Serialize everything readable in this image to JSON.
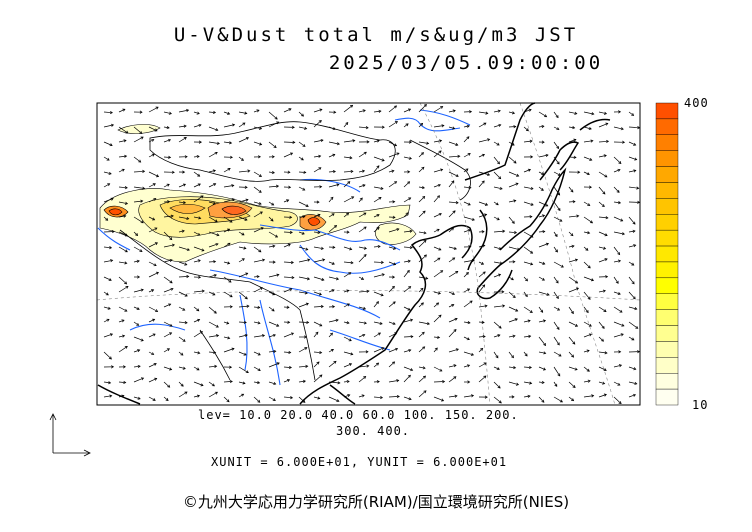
{
  "title_line1": "U-V&Dust total m/s&ug/m3 JST",
  "title_line2": "2025/03/05.09:00:00",
  "levels_line1": "lev= 10.0 20.0 40.0 60.0 100. 150. 200.",
  "levels_line2": "300. 400.",
  "units_line": "XUNIT = 6.000E+01, YUNIT = 6.000E+01",
  "colorbar": {
    "max_label": "400",
    "min_label": "10",
    "colors": [
      "#ff5000",
      "#ff6a00",
      "#ff8000",
      "#ff9400",
      "#ffa800",
      "#ffb800",
      "#ffc400",
      "#ffd000",
      "#ffdc00",
      "#ffe800",
      "#fff200",
      "#ffff00",
      "#ffff40",
      "#ffff70",
      "#ffff90",
      "#ffffb0",
      "#ffffc8",
      "#ffffe0",
      "#fffff0"
    ]
  },
  "credit": "©九州大学応用力学研究所(RIAM)/国立環境研究所(NIES)"
}
